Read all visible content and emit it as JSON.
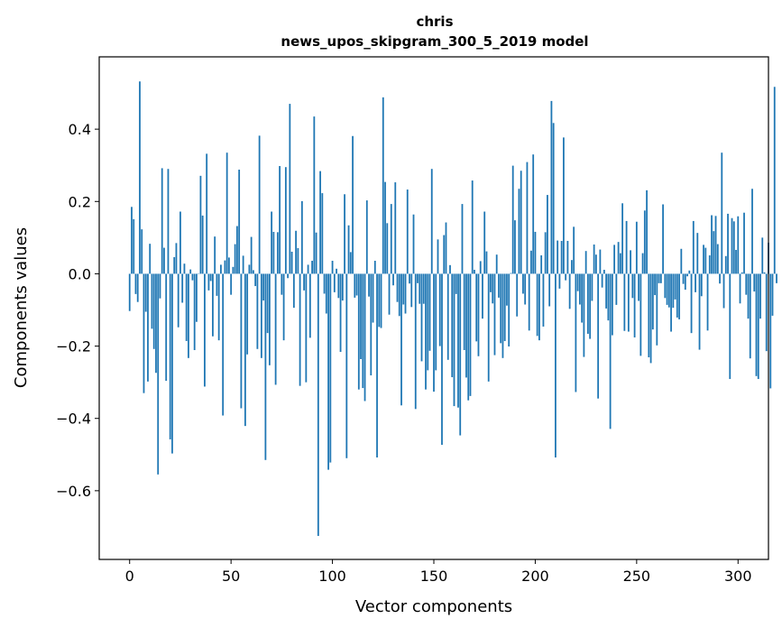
{
  "chart_data": {
    "type": "bar",
    "title_line1": "chris",
    "title_line2": "news_upos_skipgram_300_5_2019 model",
    "xlabel": "Vector components",
    "ylabel": "Components values",
    "xlim": [
      -15,
      315
    ],
    "ylim": [
      -0.79,
      0.6
    ],
    "xticks": [
      0,
      50,
      100,
      150,
      200,
      250,
      300
    ],
    "yticks": [
      -0.6,
      -0.4,
      -0.2,
      0.0,
      0.2,
      0.4
    ],
    "ytick_labels": [
      "−0.6",
      "−0.4",
      "−0.2",
      "0.0",
      "0.2",
      "0.4"
    ],
    "xtick_labels": [
      "0",
      "50",
      "100",
      "150",
      "200",
      "250",
      "300"
    ],
    "bar_color": "#1f77b4",
    "grid": false,
    "values": [
      -0.103,
      0.185,
      0.151,
      -0.056,
      -0.078,
      0.532,
      0.123,
      -0.33,
      -0.105,
      -0.298,
      0.083,
      -0.152,
      -0.208,
      -0.274,
      -0.555,
      -0.068,
      0.292,
      0.072,
      -0.296,
      0.29,
      -0.458,
      -0.497,
      0.046,
      0.085,
      -0.148,
      0.172,
      -0.08,
      0.028,
      -0.186,
      -0.233,
      0.012,
      -0.018,
      -0.211,
      -0.133,
      0.001,
      0.271,
      0.161,
      -0.312,
      0.332,
      -0.046,
      -0.02,
      -0.173,
      0.103,
      -0.061,
      -0.184,
      0.025,
      -0.392,
      0.037,
      0.335,
      0.045,
      -0.058,
      0.019,
      0.082,
      0.132,
      0.288,
      -0.372,
      0.05,
      -0.421,
      -0.223,
      0.025,
      0.102,
      0.01,
      -0.034,
      -0.208,
      0.382,
      -0.233,
      -0.074,
      -0.515,
      -0.164,
      -0.253,
      0.172,
      0.116,
      -0.307,
      0.115,
      0.298,
      -0.058,
      -0.184,
      0.295,
      -0.012,
      0.47,
      0.061,
      -0.094,
      0.119,
      0.071,
      -0.31,
      0.201,
      -0.046,
      -0.3,
      0.025,
      -0.177,
      0.036,
      0.435,
      0.114,
      -0.725,
      0.284,
      0.223,
      -0.055,
      -0.11,
      -0.542,
      -0.522,
      0.036,
      -0.051,
      0.014,
      -0.067,
      -0.216,
      -0.074,
      0.22,
      -0.51,
      0.134,
      0.06,
      0.381,
      -0.066,
      -0.06,
      -0.32,
      -0.236,
      -0.316,
      -0.352,
      0.203,
      -0.063,
      -0.281,
      -0.135,
      0.036,
      -0.508,
      -0.147,
      -0.15,
      0.488,
      0.254,
      0.14,
      -0.113,
      0.193,
      -0.032,
      0.253,
      -0.078,
      -0.117,
      -0.364,
      -0.085,
      -0.11,
      0.233,
      -0.027,
      -0.092,
      0.164,
      -0.374,
      -0.026,
      -0.083,
      -0.242,
      -0.083,
      -0.32,
      -0.267,
      -0.213,
      0.29,
      -0.326,
      -0.267,
      0.095,
      -0.2,
      -0.473,
      0.107,
      0.142,
      -0.238,
      0.024,
      -0.286,
      -0.366,
      -0.056,
      -0.37,
      -0.447,
      0.193,
      -0.211,
      -0.287,
      -0.35,
      -0.338,
      0.258,
      0.011,
      -0.187,
      -0.228,
      0.035,
      -0.124,
      0.172,
      0.062,
      -0.298,
      -0.051,
      -0.082,
      -0.225,
      0.053,
      -0.066,
      -0.192,
      -0.233,
      -0.186,
      -0.088,
      -0.201,
      0.002,
      0.299,
      0.148,
      -0.118,
      0.235,
      0.285,
      -0.055,
      -0.085,
      0.309,
      -0.157,
      0.064,
      0.33,
      0.116,
      -0.172,
      -0.184,
      0.051,
      -0.146,
      0.115,
      0.218,
      -0.09,
      0.478,
      0.417,
      -0.508,
      0.092,
      -0.041,
      0.091,
      0.377,
      -0.018,
      0.091,
      -0.097,
      0.038,
      0.13,
      -0.327,
      -0.048,
      -0.085,
      -0.135,
      -0.23,
      0.063,
      -0.166,
      -0.18,
      -0.075,
      0.081,
      0.053,
      -0.345,
      0.067,
      -0.038,
      0.011,
      -0.096,
      -0.129,
      -0.429,
      -0.17,
      0.08,
      -0.086,
      0.088,
      0.057,
      0.195,
      -0.158,
      0.146,
      -0.16,
      0.065,
      -0.067,
      -0.176,
      0.144,
      -0.075,
      -0.227,
      0.057,
      0.175,
      0.231,
      -0.231,
      -0.247,
      -0.154,
      -0.059,
      -0.198,
      -0.026,
      -0.026,
      0.192,
      -0.067,
      -0.086,
      -0.093,
      -0.16,
      -0.094,
      -0.071,
      -0.121,
      -0.126,
      0.069,
      -0.028,
      -0.044,
      -0.007,
      0.009,
      -0.164,
      0.146,
      -0.051,
      0.113,
      -0.21,
      -0.062,
      0.08,
      0.072,
      -0.157,
      0.051,
      0.162,
      0.118,
      0.16,
      0.082,
      -0.027,
      0.335,
      -0.095,
      0.049,
      0.166,
      -0.291,
      0.154,
      0.145,
      0.066,
      0.159,
      -0.082,
      0.004,
      0.169,
      -0.058,
      -0.124,
      -0.234,
      0.235,
      -0.049,
      -0.283,
      -0.291,
      -0.124,
      0.1,
      0.004,
      -0.214,
      0.086,
      -0.317,
      -0.116,
      0.517,
      -0.026
    ]
  }
}
